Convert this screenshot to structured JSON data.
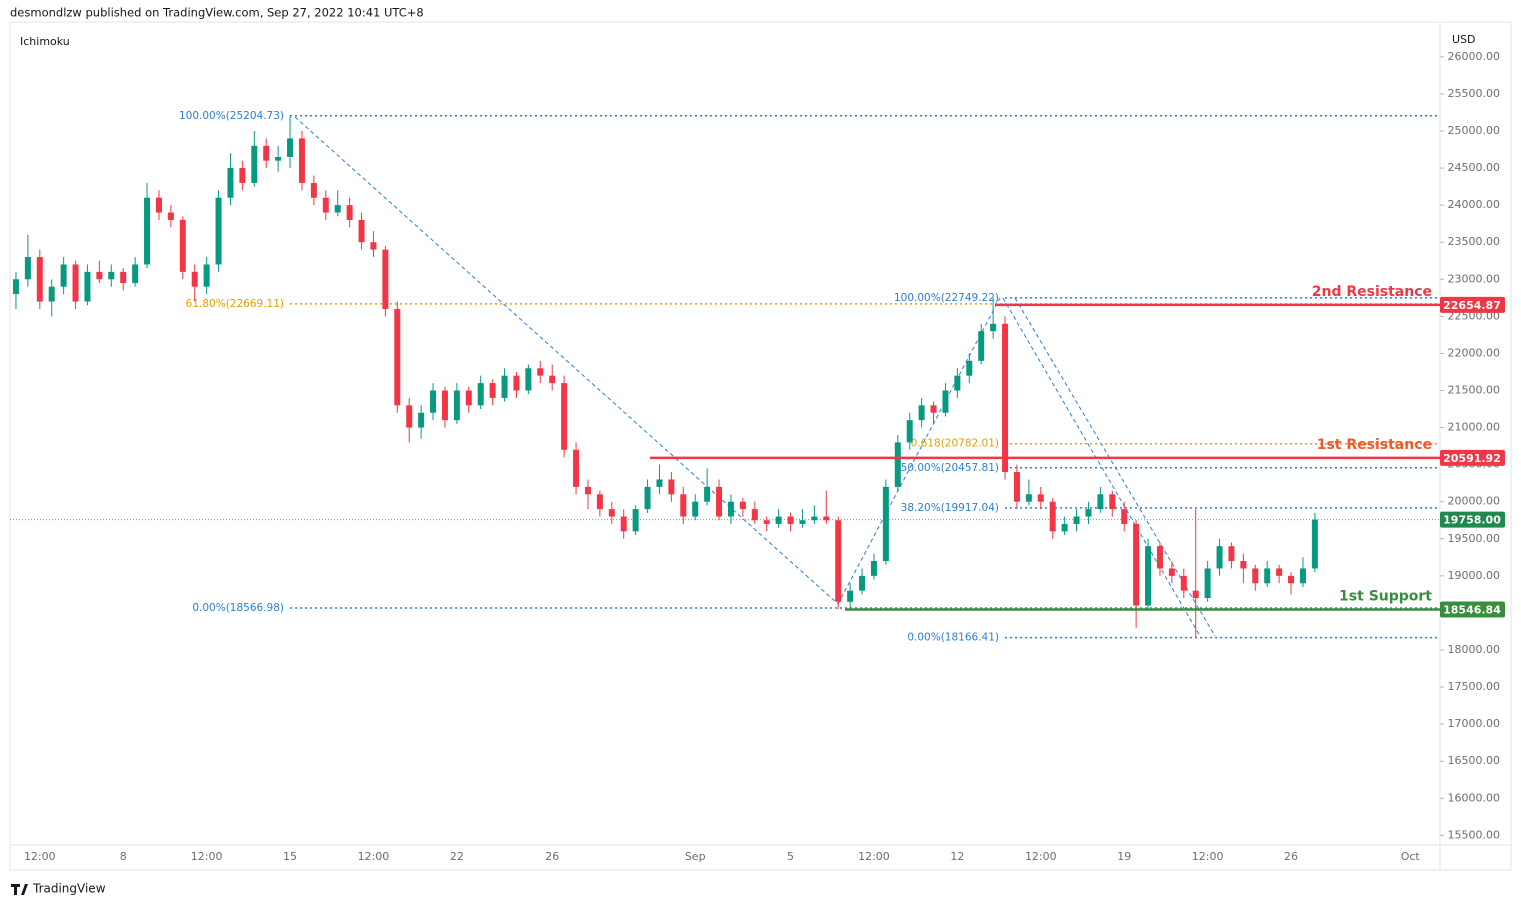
{
  "header": "desmondlzw published on TradingView.com, Sep 27, 2022 10:41 UTC+8",
  "footer": "TradingView",
  "chart_data": {
    "type": "candlestick",
    "indicator": "Ichimoku",
    "currency": "USD",
    "up_color": "#089981",
    "down_color": "#f23645",
    "ylim": [
      15370,
      26470
    ],
    "yticks": [
      {
        "value": 15500,
        "label": "15500.00"
      },
      {
        "value": 16000,
        "label": "16000.00"
      },
      {
        "value": 16500,
        "label": "16500.00"
      },
      {
        "value": 17000,
        "label": "17000.00"
      },
      {
        "value": 17500,
        "label": "17500.00"
      },
      {
        "value": 18000,
        "label": "18000.00"
      },
      {
        "value": 18500,
        "label": "18500.00"
      },
      {
        "value": 19000,
        "label": "19000.00"
      },
      {
        "value": 19500,
        "label": "19500.00"
      },
      {
        "value": 20000,
        "label": "20000.00"
      },
      {
        "value": 20500,
        "label": "20500.00"
      },
      {
        "value": 21000,
        "label": "21000.00"
      },
      {
        "value": 21500,
        "label": "21500.00"
      },
      {
        "value": 22000,
        "label": "22000.00"
      },
      {
        "value": 22500,
        "label": "22500.00"
      },
      {
        "value": 23000,
        "label": "23000.00"
      },
      {
        "value": 23500,
        "label": "23500.00"
      },
      {
        "value": 24000,
        "label": "24000.00"
      },
      {
        "value": 24500,
        "label": "24500.00"
      },
      {
        "value": 25000,
        "label": "25000.00"
      },
      {
        "value": 25500,
        "label": "25500.00"
      },
      {
        "value": 26000,
        "label": "26000.00"
      }
    ],
    "categories": [
      null,
      null,
      "12:00",
      null,
      null,
      null,
      null,
      null,
      null,
      "8",
      null,
      null,
      null,
      null,
      null,
      null,
      "12:00",
      null,
      null,
      null,
      null,
      null,
      null,
      "15",
      null,
      null,
      null,
      null,
      null,
      null,
      "12:00",
      null,
      null,
      null,
      null,
      null,
      null,
      "22",
      null,
      null,
      null,
      null,
      null,
      null,
      null,
      "26",
      null,
      null,
      null,
      null,
      null,
      null,
      null,
      null,
      null,
      null,
      null,
      "Sep",
      null,
      null,
      null,
      null,
      null,
      null,
      null,
      "5",
      null,
      null,
      null,
      null,
      null,
      null,
      "12:00",
      null,
      null,
      null,
      null,
      null,
      null,
      "12",
      null,
      null,
      null,
      null,
      null,
      null,
      "12:00",
      null,
      null,
      null,
      null,
      null,
      null,
      "19",
      null,
      null,
      null,
      null,
      null,
      null,
      "12:00",
      null,
      null,
      null,
      null,
      null,
      null,
      "26",
      null,
      null,
      null,
      null,
      null,
      null,
      null,
      null,
      null,
      "Oct",
      null,
      null
    ],
    "candles": [
      [
        22800,
        23100,
        22600,
        23000
      ],
      [
        23000,
        23600,
        22900,
        23300
      ],
      [
        23300,
        23400,
        22600,
        22700
      ],
      [
        22700,
        23000,
        22500,
        22900
      ],
      [
        22900,
        23300,
        22800,
        23200
      ],
      [
        23200,
        23250,
        22600,
        22700
      ],
      [
        22700,
        23200,
        22650,
        23100
      ],
      [
        23100,
        23250,
        22950,
        23000
      ],
      [
        23000,
        23200,
        22900,
        23100
      ],
      [
        23100,
        23150,
        22850,
        22950
      ],
      [
        22950,
        23300,
        22900,
        23200
      ],
      [
        23200,
        24300,
        23150,
        24100
      ],
      [
        24100,
        24200,
        23800,
        23900
      ],
      [
        23900,
        24000,
        23700,
        23800
      ],
      [
        23800,
        23850,
        23000,
        23100
      ],
      [
        23100,
        23200,
        22700,
        22900
      ],
      [
        22900,
        23300,
        22800,
        23200
      ],
      [
        23200,
        24200,
        23100,
        24100
      ],
      [
        24100,
        24700,
        24000,
        24500
      ],
      [
        24500,
        24600,
        24200,
        24300
      ],
      [
        24300,
        25000,
        24250,
        24800
      ],
      [
        24800,
        24900,
        24500,
        24600
      ],
      [
        24600,
        24800,
        24450,
        24650
      ],
      [
        24650,
        25200,
        24500,
        24900
      ],
      [
        24900,
        25000,
        24200,
        24300
      ],
      [
        24300,
        24400,
        24000,
        24100
      ],
      [
        24100,
        24200,
        23800,
        23900
      ],
      [
        23900,
        24200,
        23850,
        24000
      ],
      [
        24000,
        24100,
        23700,
        23800
      ],
      [
        23800,
        23900,
        23400,
        23500
      ],
      [
        23500,
        23650,
        23300,
        23400
      ],
      [
        23400,
        23450,
        22500,
        22600
      ],
      [
        22600,
        22700,
        21200,
        21300
      ],
      [
        21300,
        21400,
        20800,
        21000
      ],
      [
        21000,
        21300,
        20850,
        21200
      ],
      [
        21200,
        21600,
        21100,
        21500
      ],
      [
        21500,
        21550,
        21000,
        21100
      ],
      [
        21100,
        21600,
        21050,
        21500
      ],
      [
        21500,
        21550,
        21200,
        21300
      ],
      [
        21300,
        21700,
        21250,
        21600
      ],
      [
        21600,
        21650,
        21300,
        21400
      ],
      [
        21400,
        21800,
        21350,
        21700
      ],
      [
        21700,
        21750,
        21400,
        21500
      ],
      [
        21500,
        21850,
        21450,
        21800
      ],
      [
        21800,
        21900,
        21600,
        21700
      ],
      [
        21700,
        21850,
        21500,
        21600
      ],
      [
        21600,
        21700,
        20600,
        20700
      ],
      [
        20700,
        20800,
        20100,
        20200
      ],
      [
        20200,
        20300,
        19900,
        20100
      ],
      [
        20100,
        20150,
        19800,
        19900
      ],
      [
        19900,
        20000,
        19700,
        19800
      ],
      [
        19800,
        19900,
        19500,
        19600
      ],
      [
        19600,
        19950,
        19550,
        19900
      ],
      [
        19900,
        20300,
        19850,
        20200
      ],
      [
        20200,
        20500,
        20100,
        20300
      ],
      [
        20300,
        20400,
        20000,
        20100
      ],
      [
        20100,
        20200,
        19700,
        19800
      ],
      [
        19800,
        20100,
        19750,
        20000
      ],
      [
        20000,
        20450,
        19950,
        20200
      ],
      [
        20200,
        20300,
        19750,
        19800
      ],
      [
        19800,
        20100,
        19700,
        20000
      ],
      [
        20000,
        20050,
        19800,
        19900
      ],
      [
        19900,
        20000,
        19700,
        19750
      ],
      [
        19750,
        19800,
        19600,
        19700
      ],
      [
        19700,
        19900,
        19650,
        19800
      ],
      [
        19800,
        19850,
        19600,
        19700
      ],
      [
        19700,
        19900,
        19650,
        19750
      ],
      [
        19750,
        19950,
        19700,
        19800
      ],
      [
        19800,
        20150,
        19700,
        19750
      ],
      [
        19750,
        19800,
        18550,
        18650
      ],
      [
        18650,
        18900,
        18550,
        18800
      ],
      [
        18800,
        19100,
        18750,
        19000
      ],
      [
        19000,
        19300,
        18950,
        19200
      ],
      [
        19200,
        20300,
        19150,
        20200
      ],
      [
        20200,
        20900,
        20150,
        20800
      ],
      [
        20800,
        21200,
        20700,
        21100
      ],
      [
        21100,
        21400,
        21000,
        21300
      ],
      [
        21300,
        21350,
        21050,
        21200
      ],
      [
        21200,
        21600,
        21150,
        21500
      ],
      [
        21500,
        21800,
        21400,
        21700
      ],
      [
        21700,
        22000,
        21600,
        21900
      ],
      [
        21900,
        22400,
        21850,
        22300
      ],
      [
        22300,
        22750,
        22200,
        22400
      ],
      [
        22400,
        22500,
        20300,
        20400
      ],
      [
        20400,
        20500,
        19900,
        20000
      ],
      [
        20000,
        20300,
        19950,
        20100
      ],
      [
        20100,
        20200,
        19900,
        20000
      ],
      [
        20000,
        20050,
        19500,
        19600
      ],
      [
        19600,
        19800,
        19550,
        19700
      ],
      [
        19700,
        19900,
        19600,
        19800
      ],
      [
        19800,
        20000,
        19700,
        19900
      ],
      [
        19900,
        20200,
        19850,
        20100
      ],
      [
        20100,
        20150,
        19800,
        19900
      ],
      [
        19900,
        20000,
        19600,
        19700
      ],
      [
        19700,
        19750,
        18300,
        18600
      ],
      [
        18600,
        19500,
        18550,
        19400
      ],
      [
        19400,
        19450,
        19000,
        19100
      ],
      [
        19100,
        19200,
        18900,
        19000
      ],
      [
        19000,
        19100,
        18700,
        18800
      ],
      [
        18800,
        19900,
        18170,
        18700
      ],
      [
        18700,
        19200,
        18650,
        19100
      ],
      [
        19100,
        19500,
        19000,
        19400
      ],
      [
        19400,
        19450,
        19100,
        19200
      ],
      [
        19200,
        19300,
        18900,
        19100
      ],
      [
        19100,
        19150,
        18800,
        18900
      ],
      [
        18900,
        19200,
        18850,
        19100
      ],
      [
        19100,
        19150,
        18900,
        19000
      ],
      [
        19000,
        19050,
        18750,
        18900
      ],
      [
        18900,
        19250,
        18850,
        19100
      ],
      [
        19100,
        19850,
        19050,
        19758
      ],
      null,
      null,
      null,
      null,
      null,
      null,
      null,
      null,
      null,
      null
    ],
    "fib_retracements": [
      {
        "color": "#2a7fd4",
        "levels": [
          {
            "label": "100.00%(25204.73)",
            "price": 25204.73,
            "color": "#2a7fd4"
          },
          {
            "label": "61.80%(22669.11)",
            "price": 22669.11,
            "color": "#e5a000"
          },
          {
            "label": "0.00%(18566.98)",
            "price": 18566.98,
            "color": "#2a7fd4"
          }
        ]
      },
      {
        "color": "#2a7fd4",
        "levels": [
          {
            "label": "100.00%(22749.22)",
            "price": 22749.22,
            "color": "#2a7fd4"
          },
          {
            "label": "0.618(20782.01)",
            "price": 20782.01,
            "color": "#e5a000"
          },
          {
            "label": "50.00%(20457.81)",
            "price": 20457.81,
            "color": "#2a7fd4"
          },
          {
            "label": "38.20%(19917.04)",
            "price": 19917.04,
            "color": "#2a7fd4"
          },
          {
            "label": "0.00%(18166.41)",
            "price": 18166.41,
            "color": "#2a7fd4"
          }
        ]
      }
    ],
    "levels": [
      {
        "name": "2nd Resistance",
        "price": 22654.87,
        "color": "#f23645"
      },
      {
        "name": "1st Resistance",
        "price": 20591.92,
        "color": "#f05a28"
      },
      {
        "name": "1st Support",
        "price": 18546.84,
        "color": "#388e3c"
      }
    ],
    "last_price": {
      "value": 19758,
      "label": "19758.00",
      "color": "#1e8a4c"
    }
  }
}
